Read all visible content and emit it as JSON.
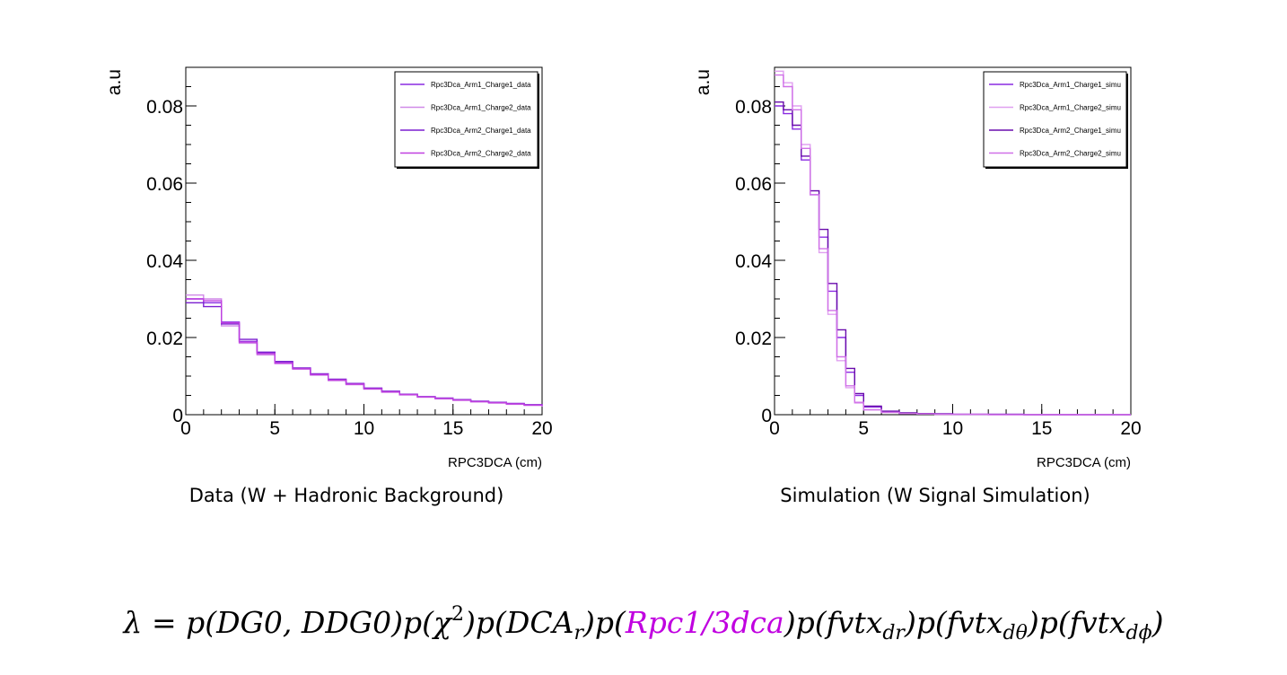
{
  "chart_data": [
    {
      "type": "line",
      "step": true,
      "ylabel": "a.u",
      "xlabel": "RPC3DCA (cm)",
      "xlim": [
        0,
        20
      ],
      "ylim": [
        0,
        0.09
      ],
      "xticks": [
        "0",
        "5",
        "10",
        "15",
        "20"
      ],
      "yticks": [
        "0",
        "0.02",
        "0.04",
        "0.06",
        "0.08"
      ],
      "legend_position": "top-right",
      "grid": false,
      "caption": "Data (W + Hadronic Background)",
      "x": [
        0,
        1,
        2,
        3,
        4,
        5,
        6,
        7,
        8,
        9,
        10,
        11,
        12,
        13,
        14,
        15,
        16,
        17,
        18,
        19,
        20
      ],
      "series": [
        {
          "name": "Rpc3Dca_Arm1_Charge1_data",
          "color": "#8a2be2",
          "values": [
            0.03,
            0.029,
            0.024,
            0.019,
            0.016,
            0.0135,
            0.012,
            0.0105,
            0.009,
            0.008,
            0.0068,
            0.006,
            0.0052,
            0.0046,
            0.0042,
            0.0038,
            0.0034,
            0.0031,
            0.0028,
            0.0025,
            0.0022
          ]
        },
        {
          "name": "Rpc3Dca_Arm1_Charge2_data",
          "color": "#d08ae8",
          "values": [
            0.031,
            0.03,
            0.023,
            0.0185,
            0.0155,
            0.0132,
            0.0118,
            0.0102,
            0.0088,
            0.0078,
            0.0066,
            0.0058,
            0.0051,
            0.0045,
            0.0041,
            0.0037,
            0.0033,
            0.003,
            0.0027,
            0.0024,
            0.0021
          ]
        },
        {
          "name": "Rpc3Dca_Arm2_Charge1_data",
          "color": "#7b1fd0",
          "values": [
            0.029,
            0.028,
            0.0235,
            0.0195,
            0.0162,
            0.0138,
            0.0121,
            0.0106,
            0.0092,
            0.0081,
            0.0069,
            0.0061,
            0.0053,
            0.0047,
            0.0043,
            0.0039,
            0.0035,
            0.0032,
            0.0029,
            0.0026,
            0.0023
          ]
        },
        {
          "name": "Rpc3Dca_Arm2_Charge2_data",
          "color": "#c040e0",
          "values": [
            0.03,
            0.0295,
            0.0238,
            0.0188,
            0.0158,
            0.0134,
            0.0119,
            0.0104,
            0.009,
            0.0079,
            0.0067,
            0.0059,
            0.0052,
            0.0046,
            0.0042,
            0.0038,
            0.0034,
            0.0031,
            0.0028,
            0.0025,
            0.0022
          ]
        }
      ]
    },
    {
      "type": "line",
      "step": true,
      "ylabel": "a.u",
      "xlabel": "RPC3DCA (cm)",
      "xlim": [
        0,
        20
      ],
      "ylim": [
        0,
        0.09
      ],
      "xticks": [
        "0",
        "5",
        "10",
        "15",
        "20"
      ],
      "yticks": [
        "0",
        "0.02",
        "0.04",
        "0.06",
        "0.08"
      ],
      "legend_position": "top-right",
      "grid": false,
      "caption": "Simulation (W Signal Simulation)",
      "x": [
        0,
        0.5,
        1,
        1.5,
        2,
        2.5,
        3,
        3.5,
        4,
        4.5,
        5,
        6,
        7,
        8,
        9,
        10,
        12,
        14,
        16,
        18,
        20
      ],
      "series": [
        {
          "name": "Rpc3Dca_Arm1_Charge1_simu",
          "color": "#8a2be2",
          "values": [
            0.08,
            0.078,
            0.074,
            0.066,
            0.057,
            0.046,
            0.032,
            0.02,
            0.011,
            0.005,
            0.002,
            0.0008,
            0.0004,
            0.0003,
            0.0002,
            0.0001,
            0.0001,
            0,
            0,
            0,
            0
          ]
        },
        {
          "name": "Rpc3Dca_Arm1_Charge2_simu",
          "color": "#e0a0f0",
          "values": [
            0.089,
            0.086,
            0.08,
            0.07,
            0.058,
            0.042,
            0.026,
            0.014,
            0.007,
            0.003,
            0.0012,
            0.0006,
            0.0003,
            0.0002,
            0.0001,
            0.0001,
            0,
            0,
            0,
            0,
            0
          ]
        },
        {
          "name": "Rpc3Dca_Arm2_Charge1_simu",
          "color": "#6a0dad",
          "values": [
            0.081,
            0.079,
            0.075,
            0.067,
            0.058,
            0.048,
            0.034,
            0.022,
            0.012,
            0.0055,
            0.0022,
            0.0009,
            0.0005,
            0.0003,
            0.0002,
            0.0001,
            0.0001,
            0,
            0,
            0,
            0
          ]
        },
        {
          "name": "Rpc3Dca_Arm2_Charge2_simu",
          "color": "#d070e8",
          "values": [
            0.088,
            0.085,
            0.079,
            0.069,
            0.057,
            0.043,
            0.027,
            0.015,
            0.0075,
            0.0032,
            0.0013,
            0.0006,
            0.0003,
            0.0002,
            0.0001,
            0.0001,
            0,
            0,
            0,
            0,
            0
          ]
        }
      ]
    }
  ],
  "formula": {
    "lambda": "λ",
    "eq": " = ",
    "p1": "p(DG0, DDG0)",
    "p2_open": "p(χ",
    "p2_sup": "2",
    "p2_close": ")",
    "p3_open": "p(DCA",
    "p3_sub": "r",
    "p3_close": ")",
    "p4_open": "p(",
    "p4_hl": "Rpc1/3dca",
    "p4_close": ")",
    "p5_open": "p(fvtx",
    "p5_sub": "dr",
    "p5_close": ")",
    "p6_open": "p(fvtx",
    "p6_sub": "dθ",
    "p6_close": ")",
    "p7_open": "p(fvtx",
    "p7_sub": "dϕ",
    "p7_close": ")"
  }
}
